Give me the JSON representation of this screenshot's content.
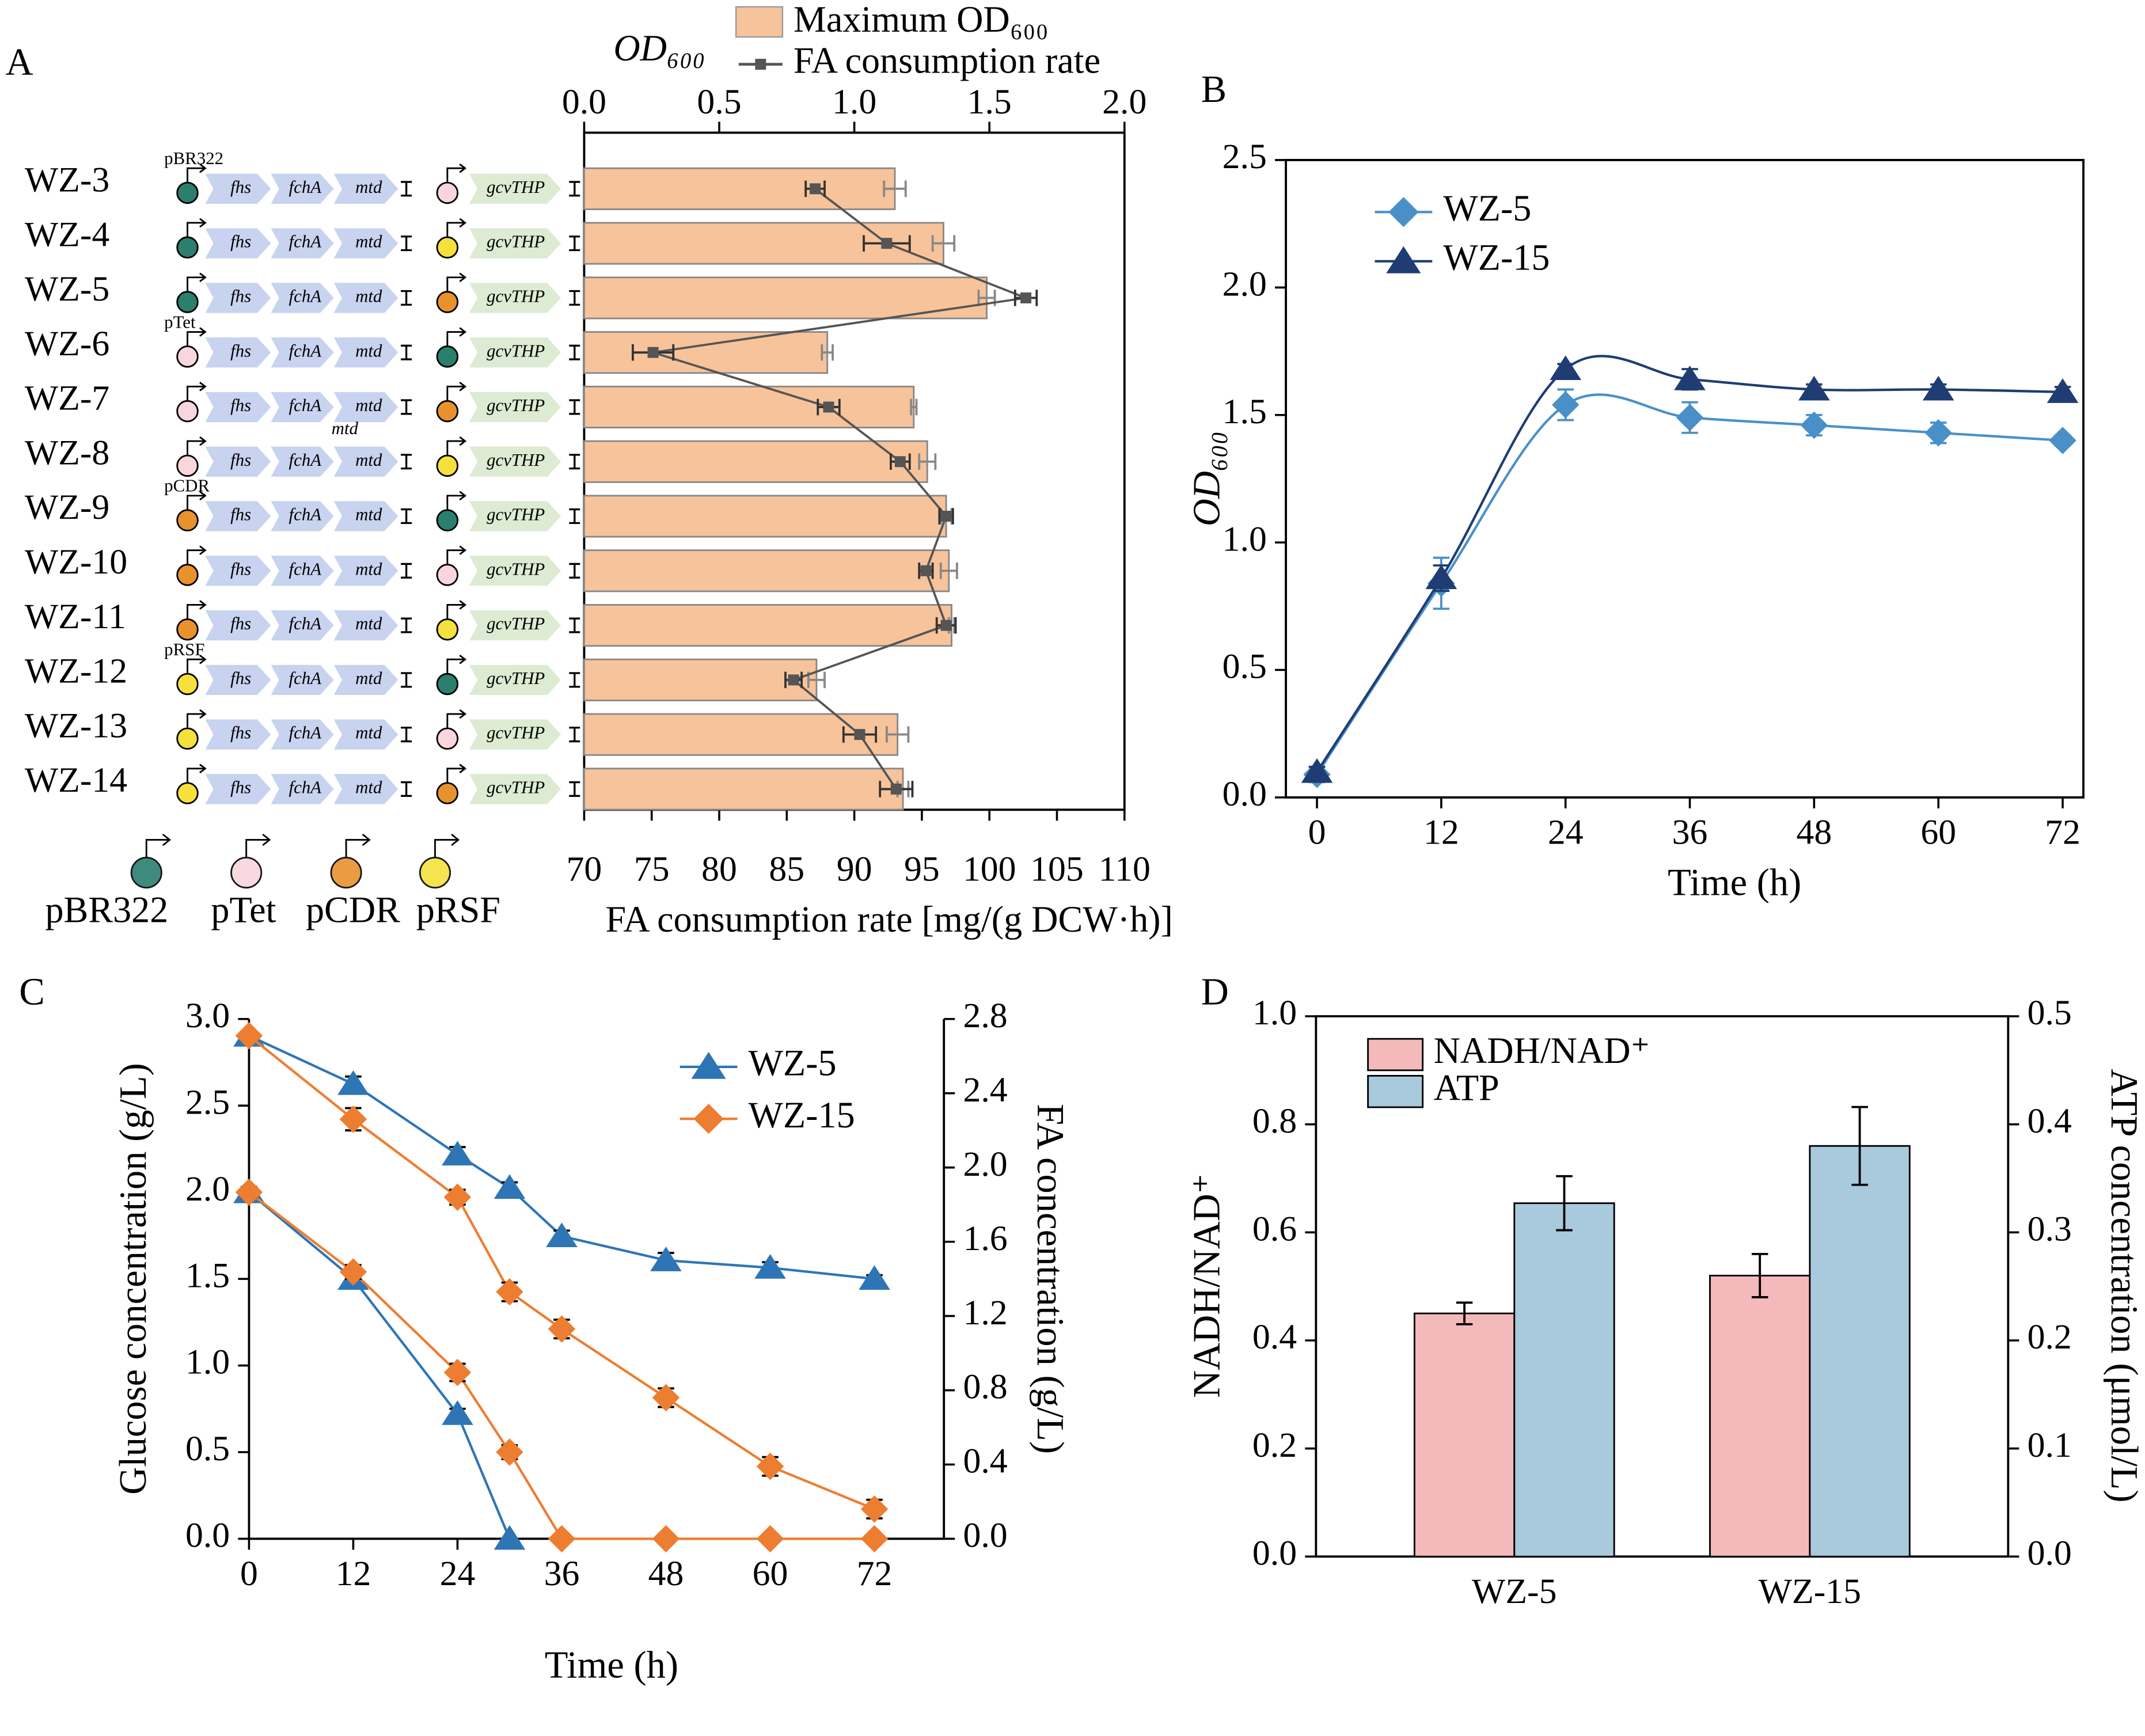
{
  "chart_data": [
    {
      "type": "combo",
      "label": "A",
      "categories": [
        "WZ-3",
        "WZ-4",
        "WZ-5",
        "WZ-6",
        "WZ-7",
        "WZ-8",
        "WZ-9",
        "WZ-10",
        "WZ-11",
        "WZ-12",
        "WZ-13",
        "WZ-14"
      ],
      "promoters": [
        {
          "name": "pBR322",
          "color": "#2a7f6f"
        },
        {
          "name": "pTet",
          "color": "#f9d5dc"
        },
        {
          "name": "pCDR",
          "color": "#e8922e"
        },
        {
          "name": "pRSF",
          "color": "#f5e03c"
        }
      ],
      "constructs": [
        [
          "pBR322",
          "pTet"
        ],
        [
          "pBR322",
          "pRSF"
        ],
        [
          "pBR322",
          "pCDR"
        ],
        [
          "pTet",
          "pBR322"
        ],
        [
          "pTet",
          "pCDR"
        ],
        [
          "pTet",
          "pRSF"
        ],
        [
          "pCDR",
          "pBR322"
        ],
        [
          "pCDR",
          "pTet"
        ],
        [
          "pCDR",
          "pRSF"
        ],
        [
          "pRSF",
          "pBR322"
        ],
        [
          "pRSF",
          "pTet"
        ],
        [
          "pRSF",
          "pCDR"
        ]
      ],
      "genes": [
        "fhs",
        "fchA",
        "mtd"
      ],
      "gene2": "gcvTHP",
      "series": [
        {
          "name": "Maximum OD₆₀₀",
          "color": "#f7c39a",
          "axis": "x2",
          "values": [
            1.15,
            1.33,
            1.49,
            0.9,
            1.22,
            1.27,
            1.34,
            1.35,
            1.36,
            0.86,
            1.16,
            1.18
          ],
          "errors": [
            0.04,
            0.04,
            0.03,
            0.02,
            0.01,
            0.03,
            0.02,
            0.03,
            0.01,
            0.03,
            0.04,
            0.02
          ]
        },
        {
          "name": "FA consumption rate",
          "color": "#555555",
          "values": [
            87.1,
            92.4,
            102.7,
            75.1,
            88.1,
            93.4,
            96.8,
            95.3,
            96.8,
            85.5,
            90.4,
            93.1
          ],
          "errors": [
            0.7,
            1.7,
            0.8,
            1.5,
            0.8,
            0.7,
            0.5,
            0.5,
            0.7,
            0.6,
            1.2,
            1.2
          ]
        }
      ],
      "xlabel": "FA consumption rate [mg/(g DCW·h)]",
      "xlim": [
        70,
        110
      ],
      "xticks": [
        70,
        75,
        80,
        85,
        90,
        95,
        100,
        105,
        110
      ],
      "x2label": "OD₆₀₀",
      "x2lim": [
        0,
        2.0
      ],
      "x2ticks": [
        {
          "value": 0,
          "label": "0.0"
        },
        0.5,
        {
          "value": 1,
          "label": "1.0"
        },
        1.5,
        {
          "value": 2,
          "label": "2.0"
        }
      ]
    },
    {
      "type": "line",
      "label": "B",
      "smooth": true,
      "x": [
        0,
        12,
        24,
        36,
        48,
        60,
        72
      ],
      "series": [
        {
          "name": "WZ-5",
          "color": "#4a90c8",
          "marker": "diamond",
          "values": [
            0.09,
            0.84,
            1.54,
            1.49,
            1.46,
            1.43,
            1.4
          ],
          "errors": [
            0.03,
            0.1,
            0.06,
            0.06,
            0.04,
            0.04,
            0.02
          ]
        },
        {
          "name": "WZ-15",
          "color": "#1f3d73",
          "marker": "triangle",
          "values": [
            0.1,
            0.86,
            1.68,
            1.64,
            1.6,
            1.6,
            1.59
          ],
          "errors": [
            0.02,
            0.05,
            0.02,
            0.04,
            0.02,
            0.02,
            0.02
          ]
        }
      ],
      "xlabel": "Time (h)",
      "xlim": [
        -3,
        74
      ],
      "xticks": [
        0,
        12,
        24,
        36,
        48,
        60,
        72
      ],
      "ylabel": "OD₆₀₀",
      "ylim": [
        0,
        2.5
      ],
      "yticks": [
        {
          "value": 0,
          "label": "0.0"
        },
        0.5,
        {
          "value": 1,
          "label": "1.0"
        },
        1.5,
        {
          "value": 2,
          "label": "2.0"
        },
        2.5
      ]
    },
    {
      "type": "line",
      "label": "C",
      "series": [
        {
          "name": "WZ-5",
          "color": "#2e75b6",
          "marker": "triangle",
          "axis": "y2",
          "x": [
            0,
            12,
            24,
            30,
            36,
            48,
            60,
            72
          ],
          "values": [
            2.71,
            2.45,
            2.07,
            1.89,
            1.63,
            1.5,
            1.46,
            1.4
          ],
          "errors": [
            0.02,
            0.04,
            0.04,
            0.03,
            0.03,
            0.04,
            0.03,
            0.02
          ]
        },
        {
          "name": "WZ-15",
          "color": "#ed7d31",
          "marker": "diamond",
          "axis": "y2",
          "x": [
            0,
            12,
            24,
            30,
            36,
            48,
            60,
            72
          ],
          "values": [
            2.71,
            2.26,
            1.84,
            1.33,
            1.13,
            0.76,
            0.39,
            0.16
          ],
          "errors": [
            0.02,
            0.06,
            0.04,
            0.05,
            0.05,
            0.05,
            0.05,
            0.05
          ]
        },
        {
          "name": "WZ-5",
          "color": "#2e75b6",
          "marker": "triangle",
          "x": [
            0,
            12,
            24,
            30
          ],
          "values": [
            2.0,
            1.5,
            0.72,
            0.0
          ],
          "errors": [
            0.03,
            0.04,
            0.03,
            0
          ]
        },
        {
          "name": "WZ-15",
          "color": "#ed7d31",
          "marker": "diamond",
          "x": [
            0,
            12,
            24,
            30,
            36,
            48,
            60,
            72
          ],
          "values": [
            2.0,
            1.54,
            0.96,
            0.5,
            0.0,
            0.0,
            0.0,
            0.0
          ],
          "errors": [
            0.03,
            0.04,
            0.05,
            0.04,
            0,
            0,
            0,
            0
          ]
        }
      ],
      "xlabel": "Time (h)",
      "xlim": [
        0,
        80
      ],
      "xticks": [
        0,
        12,
        24,
        36,
        48,
        60,
        72
      ],
      "ylabel": "Glucose concentration (g/L)",
      "ylim": [
        0,
        3.0
      ],
      "yticks": [
        {
          "value": 0,
          "label": "0.0"
        },
        0.5,
        {
          "value": 1,
          "label": "1.0"
        },
        1.5,
        {
          "value": 2,
          "label": "2.0"
        },
        2.5,
        {
          "value": 3,
          "label": "3.0"
        }
      ],
      "y2label": "FA concentration (g/L)",
      "y2lim": [
        0,
        2.8
      ],
      "y2ticks": [
        {
          "value": 0,
          "label": "0.0"
        },
        0.4,
        0.8,
        1.2,
        1.6,
        {
          "value": 2,
          "label": "2.0"
        },
        2.4,
        2.8
      ]
    },
    {
      "type": "bar",
      "label": "D",
      "categories": [
        "WZ-5",
        "WZ-15"
      ],
      "series": [
        {
          "name": "NADH/NAD⁺",
          "color": "#f4b9bb",
          "values": [
            0.45,
            0.52
          ],
          "errors": [
            0.02,
            0.04
          ]
        },
        {
          "name": "ATP",
          "color": "#a9c9dd",
          "axis": "y2",
          "values": [
            0.327,
            0.38
          ],
          "errors": [
            0.025,
            0.036
          ]
        }
      ],
      "ylabel": "NADH/NAD⁺",
      "ylim": [
        0,
        1.0
      ],
      "yticks": [
        {
          "value": 0,
          "label": "0.0"
        },
        0.2,
        0.4,
        0.6,
        0.8,
        {
          "value": 1,
          "label": "1.0"
        }
      ],
      "y2label": "ATP concentration (μmol/L)",
      "y2lim": [
        0,
        0.5
      ],
      "y2ticks": [
        {
          "value": 0,
          "label": "0.0"
        },
        0.1,
        0.2,
        0.3,
        0.4,
        0.5
      ]
    }
  ]
}
